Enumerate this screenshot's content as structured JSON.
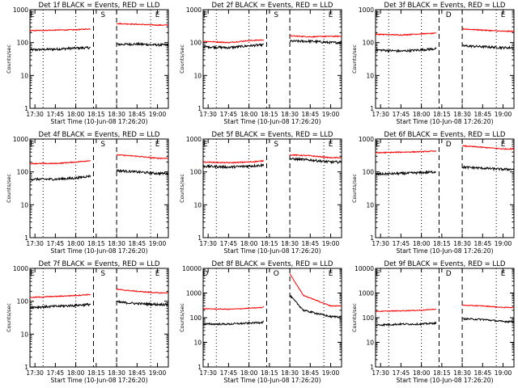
{
  "colors": {
    "events": "#000000",
    "lld": "#ff0000",
    "background": "#ffffff"
  },
  "chart_data": [
    {
      "type": "line",
      "title": "Det 1f BLACK = Events, RED = LLD",
      "xlabel": "Start Time (10-Jun-08 17:26:20)",
      "ylabel": "Counts/sec",
      "yscale": "log",
      "ylim": [
        1,
        1000
      ],
      "y_ticks": [
        "1",
        "10",
        "100",
        "1000"
      ],
      "x_ticks": [
        "17:30",
        "17:45",
        "18:00",
        "18:15",
        "18:30",
        "18:45",
        "19:00"
      ],
      "markers": [
        "E",
        "S",
        "E"
      ],
      "series": [
        {
          "color": "#000000",
          "points": [
            [
              "17:26",
              60
            ],
            [
              "17:45",
              63
            ],
            [
              "18:00",
              68
            ],
            [
              "18:10",
              70
            ],
            [
              "18:30",
              88
            ],
            [
              "18:45",
              90
            ],
            [
              "19:00",
              85
            ]
          ]
        },
        {
          "color": "#ff0000",
          "points": [
            [
              "17:26",
              230
            ],
            [
              "17:45",
              240
            ],
            [
              "18:00",
              245
            ],
            [
              "18:10",
              260
            ],
            [
              "18:30",
              380
            ],
            [
              "18:45",
              360
            ],
            [
              "19:00",
              340
            ]
          ]
        }
      ]
    },
    {
      "type": "line",
      "title": "Det 2f BLACK = Events, RED = LLD",
      "xlabel": "Start Time (10-Jun-08 17:26:20)",
      "ylabel": "Counts/sec",
      "yscale": "log",
      "ylim": [
        1,
        1000
      ],
      "y_ticks": [
        "1",
        "10",
        "100",
        "1000"
      ],
      "x_ticks": [
        "17:30",
        "17:45",
        "18:00",
        "18:15",
        "18:30",
        "18:45",
        "19:00"
      ],
      "markers": [
        "E",
        "S",
        "E"
      ],
      "series": [
        {
          "color": "#000000",
          "points": [
            [
              "17:26",
              75
            ],
            [
              "17:45",
              70
            ],
            [
              "18:00",
              80
            ],
            [
              "18:10",
              85
            ],
            [
              "18:30",
              110
            ],
            [
              "18:45",
              110
            ],
            [
              "19:00",
              100
            ]
          ]
        },
        {
          "color": "#ff0000",
          "points": [
            [
              "17:26",
              110
            ],
            [
              "17:45",
              100
            ],
            [
              "18:00",
              115
            ],
            [
              "18:10",
              120
            ],
            [
              "18:30",
              160
            ],
            [
              "18:45",
              150
            ],
            [
              "19:00",
              155
            ]
          ]
        }
      ]
    },
    {
      "type": "line",
      "title": "Det 3f BLACK = Events, RED = LLD",
      "xlabel": "Start Time (10-Jun-08 17:26:20)",
      "ylabel": "Counts/sec",
      "yscale": "log",
      "ylim": [
        1,
        1000
      ],
      "y_ticks": [
        "1",
        "10",
        "100",
        "1000"
      ],
      "x_ticks": [
        "17:30",
        "17:45",
        "18:00",
        "18:15",
        "18:30",
        "18:45",
        "19:00"
      ],
      "markers": [
        "E",
        "D",
        "E"
      ],
      "series": [
        {
          "color": "#000000",
          "points": [
            [
              "17:26",
              60
            ],
            [
              "17:45",
              55
            ],
            [
              "18:00",
              60
            ],
            [
              "18:10",
              65
            ],
            [
              "18:30",
              80
            ],
            [
              "18:45",
              75
            ],
            [
              "19:00",
              70
            ]
          ]
        },
        {
          "color": "#ff0000",
          "points": [
            [
              "17:26",
              180
            ],
            [
              "17:45",
              170
            ],
            [
              "18:00",
              185
            ],
            [
              "18:10",
              190
            ],
            [
              "18:30",
              260
            ],
            [
              "18:45",
              240
            ],
            [
              "19:00",
              220
            ]
          ]
        }
      ]
    },
    {
      "type": "line",
      "title": "Det 4f BLACK = Events, RED = LLD",
      "xlabel": "Start Time (10-Jun-08 17:26:20)",
      "ylabel": "Counts/sec",
      "yscale": "log",
      "ylim": [
        1,
        1000
      ],
      "y_ticks": [
        "1",
        "10",
        "100",
        "1000"
      ],
      "x_ticks": [
        "17:30",
        "17:45",
        "18:00",
        "18:15",
        "18:30",
        "18:45",
        "19:00"
      ],
      "markers": [
        "E",
        "S",
        "E"
      ],
      "series": [
        {
          "color": "#000000",
          "points": [
            [
              "17:26",
              60
            ],
            [
              "17:45",
              60
            ],
            [
              "18:00",
              65
            ],
            [
              "18:10",
              75
            ],
            [
              "18:30",
              110
            ],
            [
              "18:45",
              100
            ],
            [
              "19:00",
              90
            ]
          ]
        },
        {
          "color": "#ff0000",
          "points": [
            [
              "17:26",
              180
            ],
            [
              "17:45",
              180
            ],
            [
              "18:00",
              200
            ],
            [
              "18:10",
              220
            ],
            [
              "18:30",
              330
            ],
            [
              "18:45",
              300
            ],
            [
              "19:00",
              260
            ]
          ]
        }
      ]
    },
    {
      "type": "line",
      "title": "Det 5f BLACK = Events, RED = LLD",
      "xlabel": "Start Time (10-Jun-08 17:26:20)",
      "ylabel": "Counts/sec",
      "yscale": "log",
      "ylim": [
        1,
        1000
      ],
      "y_ticks": [
        "1",
        "10",
        "100",
        "1000"
      ],
      "x_ticks": [
        "17:30",
        "17:45",
        "18:00",
        "18:15",
        "18:30",
        "18:45",
        "19:00"
      ],
      "markers": [
        "E",
        "S",
        "E"
      ],
      "series": [
        {
          "color": "#000000",
          "points": [
            [
              "17:26",
              150
            ],
            [
              "17:45",
              140
            ],
            [
              "18:00",
              150
            ],
            [
              "18:10",
              160
            ],
            [
              "18:30",
              250
            ],
            [
              "18:45",
              230
            ],
            [
              "19:00",
              200
            ]
          ]
        },
        {
          "color": "#ff0000",
          "points": [
            [
              "17:26",
              200
            ],
            [
              "17:45",
              190
            ],
            [
              "18:00",
              200
            ],
            [
              "18:10",
              215
            ],
            [
              "18:30",
              330
            ],
            [
              "18:45",
              310
            ],
            [
              "19:00",
              270
            ]
          ]
        }
      ]
    },
    {
      "type": "line",
      "title": "Det 6f BLACK = Events, RED = LLD",
      "xlabel": "Start Time (10-Jun-08 17:26:20)",
      "ylabel": "Counts/sec",
      "yscale": "log",
      "ylim": [
        1,
        1000
      ],
      "y_ticks": [
        "1",
        "10",
        "100",
        "1000"
      ],
      "x_ticks": [
        "17:30",
        "17:45",
        "18:00",
        "18:15",
        "18:30",
        "18:45",
        "19:00"
      ],
      "markers": [
        "E",
        "D",
        "E"
      ],
      "series": [
        {
          "color": "#000000",
          "points": [
            [
              "17:26",
              85
            ],
            [
              "17:45",
              90
            ],
            [
              "18:00",
              95
            ],
            [
              "18:10",
              100
            ],
            [
              "18:30",
              140
            ],
            [
              "18:45",
              130
            ],
            [
              "19:00",
              120
            ]
          ]
        },
        {
          "color": "#ff0000",
          "points": [
            [
              "17:26",
              380
            ],
            [
              "17:45",
              400
            ],
            [
              "18:00",
              410
            ],
            [
              "18:10",
              430
            ],
            [
              "18:30",
              620
            ],
            [
              "18:45",
              560
            ],
            [
              "19:00",
              500
            ]
          ]
        }
      ]
    },
    {
      "type": "line",
      "title": "Det 7f BLACK = Events, RED = LLD",
      "xlabel": "Start Time (10-Jun-08 17:26:20)",
      "ylabel": "Counts/sec",
      "yscale": "log",
      "ylim": [
        1,
        1000
      ],
      "y_ticks": [
        "1",
        "10",
        "100",
        "1000"
      ],
      "x_ticks": [
        "17:30",
        "17:45",
        "18:00",
        "18:15",
        "18:30",
        "18:45",
        "19:00"
      ],
      "markers": [
        "E",
        "S",
        "E"
      ],
      "series": [
        {
          "color": "#000000",
          "points": [
            [
              "17:26",
              65
            ],
            [
              "17:45",
              70
            ],
            [
              "18:00",
              75
            ],
            [
              "18:10",
              80
            ],
            [
              "18:30",
              95
            ],
            [
              "18:45",
              85
            ],
            [
              "19:00",
              80
            ]
          ]
        },
        {
          "color": "#ff0000",
          "points": [
            [
              "17:26",
              130
            ],
            [
              "17:45",
              140
            ],
            [
              "18:00",
              150
            ],
            [
              "18:10",
              160
            ],
            [
              "18:30",
              230
            ],
            [
              "18:45",
              200
            ],
            [
              "19:00",
              180
            ]
          ]
        }
      ]
    },
    {
      "type": "line",
      "title": "Det 8f BLACK = Events, RED = LLD",
      "xlabel": "Start Time (10-Jun-08 17:26:20)",
      "ylabel": "Counts/sec",
      "yscale": "log",
      "ylim": [
        1,
        10000
      ],
      "y_ticks": [
        "1",
        "10",
        "100",
        "1000",
        "10000"
      ],
      "x_ticks": [
        "17:30",
        "17:45",
        "18:00",
        "18:15",
        "18:30",
        "18:45",
        "19:00"
      ],
      "markers": [
        "D",
        "O",
        "E"
      ],
      "series": [
        {
          "color": "#000000",
          "points": [
            [
              "17:26",
              55
            ],
            [
              "17:45",
              55
            ],
            [
              "18:00",
              60
            ],
            [
              "18:10",
              65
            ],
            [
              "18:30",
              800
            ],
            [
              "18:40",
              200
            ],
            [
              "19:00",
              110
            ]
          ]
        },
        {
          "color": "#ff0000",
          "points": [
            [
              "17:26",
              230
            ],
            [
              "17:45",
              220
            ],
            [
              "18:00",
              240
            ],
            [
              "18:10",
              260
            ],
            [
              "18:30",
              6000
            ],
            [
              "18:40",
              800
            ],
            [
              "19:00",
              300
            ]
          ]
        }
      ]
    },
    {
      "type": "line",
      "title": "Det 9f BLACK = Events, RED = LLD",
      "xlabel": "Start Time (10-Jun-08 17:26:20)",
      "ylabel": "Counts/sec",
      "yscale": "log",
      "ylim": [
        1,
        10000
      ],
      "y_ticks": [
        "1",
        "10",
        "100",
        "1000",
        "10000"
      ],
      "x_ticks": [
        "17:30",
        "17:45",
        "18:00",
        "18:15",
        "18:30",
        "18:45",
        "19:00"
      ],
      "markers": [
        "E",
        "D",
        "E"
      ],
      "series": [
        {
          "color": "#000000",
          "points": [
            [
              "17:26",
              50
            ],
            [
              "17:45",
              55
            ],
            [
              "18:00",
              55
            ],
            [
              "18:10",
              60
            ],
            [
              "18:30",
              90
            ],
            [
              "18:45",
              85
            ],
            [
              "19:00",
              70
            ]
          ]
        },
        {
          "color": "#ff0000",
          "points": [
            [
              "17:26",
              180
            ],
            [
              "17:45",
              190
            ],
            [
              "18:00",
              200
            ],
            [
              "18:10",
              220
            ],
            [
              "18:30",
              320
            ],
            [
              "18:45",
              300
            ],
            [
              "19:00",
              260
            ]
          ]
        }
      ]
    }
  ]
}
